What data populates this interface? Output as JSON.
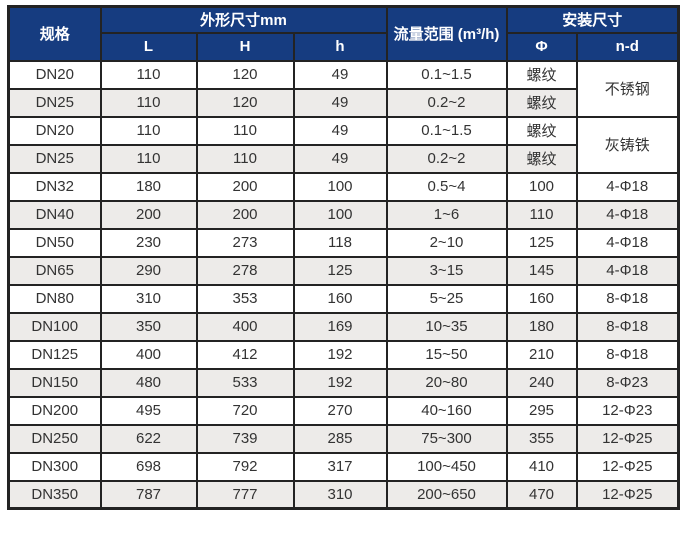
{
  "table": {
    "header": {
      "spec": "规格",
      "outer_dims": "外形尺寸mm",
      "flow_range": "流量范围 (m³/h)",
      "install_dims": "安装尺寸",
      "col_L": "L",
      "col_H": "H",
      "col_h": "h",
      "col_phi": "Φ",
      "col_nd": "n-d"
    },
    "rows": [
      {
        "spec": "DN20",
        "L": "110",
        "H": "120",
        "h": "49",
        "flow": "0.1~1.5",
        "phi": "螺纹",
        "material": "不锈钢",
        "material_rowspan": 2
      },
      {
        "spec": "DN25",
        "L": "110",
        "H": "120",
        "h": "49",
        "flow": "0.2~2",
        "phi": "螺纹"
      },
      {
        "spec": "DN20",
        "L": "110",
        "H": "110",
        "h": "49",
        "flow": "0.1~1.5",
        "phi": "螺纹",
        "material": "灰铸铁",
        "material_rowspan": 2
      },
      {
        "spec": "DN25",
        "L": "110",
        "H": "110",
        "h": "49",
        "flow": "0.2~2",
        "phi": "螺纹"
      },
      {
        "spec": "DN32",
        "L": "180",
        "H": "200",
        "h": "100",
        "flow": "0.5~4",
        "phi": "100",
        "nd": "4-Φ18"
      },
      {
        "spec": "DN40",
        "L": "200",
        "H": "200",
        "h": "100",
        "flow": "1~6",
        "phi": "110",
        "nd": "4-Φ18"
      },
      {
        "spec": "DN50",
        "L": "230",
        "H": "273",
        "h": "118",
        "flow": "2~10",
        "phi": "125",
        "nd": "4-Φ18"
      },
      {
        "spec": "DN65",
        "L": "290",
        "H": "278",
        "h": "125",
        "flow": "3~15",
        "phi": "145",
        "nd": "4-Φ18"
      },
      {
        "spec": "DN80",
        "L": "310",
        "H": "353",
        "h": "160",
        "flow": "5~25",
        "phi": "160",
        "nd": "8-Φ18"
      },
      {
        "spec": "DN100",
        "L": "350",
        "H": "400",
        "h": "169",
        "flow": "10~35",
        "phi": "180",
        "nd": "8-Φ18"
      },
      {
        "spec": "DN125",
        "L": "400",
        "H": "412",
        "h": "192",
        "flow": "15~50",
        "phi": "210",
        "nd": "8-Φ18"
      },
      {
        "spec": "DN150",
        "L": "480",
        "H": "533",
        "h": "192",
        "flow": "20~80",
        "phi": "240",
        "nd": "8-Φ23"
      },
      {
        "spec": "DN200",
        "L": "495",
        "H": "720",
        "h": "270",
        "flow": "40~160",
        "phi": "295",
        "nd": "12-Φ23"
      },
      {
        "spec": "DN250",
        "L": "622",
        "H": "739",
        "h": "285",
        "flow": "75~300",
        "phi": "355",
        "nd": "12-Φ25"
      },
      {
        "spec": "DN300",
        "L": "698",
        "H": "792",
        "h": "317",
        "flow": "100~450",
        "phi": "410",
        "nd": "12-Φ25"
      },
      {
        "spec": "DN350",
        "L": "787",
        "H": "777",
        "h": "310",
        "flow": "200~650",
        "phi": "470",
        "nd": "12-Φ25"
      }
    ],
    "colors": {
      "header_bg": "#163c80",
      "header_text": "#ffffff",
      "border": "#232323",
      "zebra_row": "#edebe9",
      "row": "#ffffff",
      "cell_text": "#333333"
    }
  }
}
